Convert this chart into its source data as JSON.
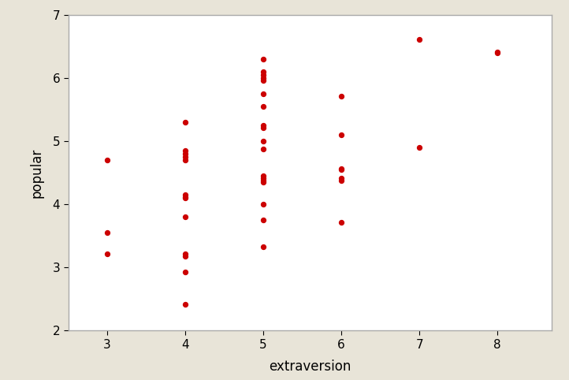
{
  "x": [
    3,
    3,
    3,
    4,
    4,
    4,
    4,
    4,
    4,
    4,
    4,
    4,
    4,
    4,
    4,
    4,
    5,
    5,
    5,
    5,
    5,
    5,
    5,
    5,
    5,
    5,
    5,
    5,
    5,
    5,
    5,
    5,
    5,
    5,
    6,
    6,
    6,
    6,
    6,
    6,
    6,
    7,
    7,
    8,
    8
  ],
  "y": [
    4.7,
    3.55,
    3.22,
    5.3,
    4.85,
    4.8,
    4.75,
    4.7,
    4.15,
    4.12,
    3.8,
    3.22,
    3.18,
    2.93,
    2.42,
    4.1,
    6.3,
    6.1,
    6.05,
    6.0,
    5.97,
    5.75,
    5.55,
    5.25,
    5.22,
    5.0,
    4.88,
    4.45,
    4.42,
    4.38,
    4.35,
    4.0,
    3.75,
    3.33,
    5.72,
    5.1,
    4.57,
    4.55,
    4.42,
    4.38,
    3.72,
    6.62,
    4.9,
    6.42,
    6.4
  ],
  "dot_color": "#cc0000",
  "dot_size": 18,
  "xlabel": "extraversion",
  "ylabel": "popular",
  "xlim": [
    2.5,
    8.7
  ],
  "ylim": [
    2.0,
    7.0
  ],
  "xticks": [
    3,
    4,
    5,
    6,
    7,
    8
  ],
  "yticks": [
    2,
    3,
    4,
    5,
    6,
    7
  ],
  "bg_color": "#e8e4d8",
  "plot_bg_color": "#ffffff",
  "border_color": "#aaaaaa"
}
